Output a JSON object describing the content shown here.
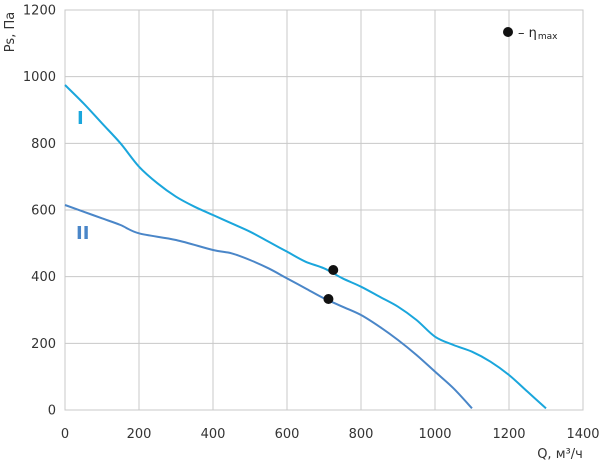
{
  "chart_data": {
    "type": "line",
    "xlabel": "Q, м³/ч",
    "ylabel": "Ps, Па",
    "xlim": [
      0,
      1400
    ],
    "ylim": [
      0,
      1200
    ],
    "x_ticks": [
      "0",
      "200",
      "400",
      "600",
      "800",
      "1000",
      "1200",
      "1400"
    ],
    "y_ticks": [
      "0",
      "200",
      "400",
      "600",
      "800",
      "1000",
      "1200"
    ],
    "grid": true,
    "legend": {
      "symbol": "●",
      "label": "– η",
      "label_sub": "max",
      "position": "top-right"
    },
    "series": [
      {
        "name": "I",
        "color": "#1aa6dc",
        "points": [
          [
            0,
            975
          ],
          [
            50,
            920
          ],
          [
            100,
            860
          ],
          [
            150,
            800
          ],
          [
            200,
            730
          ],
          [
            250,
            680
          ],
          [
            300,
            640
          ],
          [
            350,
            610
          ],
          [
            400,
            585
          ],
          [
            450,
            560
          ],
          [
            500,
            535
          ],
          [
            550,
            505
          ],
          [
            600,
            475
          ],
          [
            650,
            445
          ],
          [
            700,
            425
          ],
          [
            750,
            395
          ],
          [
            800,
            370
          ],
          [
            850,
            340
          ],
          [
            900,
            310
          ],
          [
            950,
            270
          ],
          [
            1000,
            220
          ],
          [
            1050,
            195
          ],
          [
            1100,
            175
          ],
          [
            1150,
            145
          ],
          [
            1200,
            105
          ],
          [
            1250,
            55
          ],
          [
            1300,
            5
          ]
        ],
        "eta_max": [
          725,
          420
        ]
      },
      {
        "name": "II",
        "color": "#4a86c8",
        "points": [
          [
            0,
            615
          ],
          [
            50,
            595
          ],
          [
            100,
            575
          ],
          [
            150,
            555
          ],
          [
            200,
            530
          ],
          [
            300,
            510
          ],
          [
            400,
            480
          ],
          [
            450,
            470
          ],
          [
            500,
            450
          ],
          [
            550,
            425
          ],
          [
            600,
            395
          ],
          [
            650,
            365
          ],
          [
            700,
            335
          ],
          [
            750,
            310
          ],
          [
            800,
            285
          ],
          [
            850,
            250
          ],
          [
            900,
            210
          ],
          [
            950,
            165
          ],
          [
            1000,
            115
          ],
          [
            1050,
            65
          ],
          [
            1100,
            5
          ]
        ],
        "eta_max": [
          712,
          333
        ]
      }
    ]
  }
}
